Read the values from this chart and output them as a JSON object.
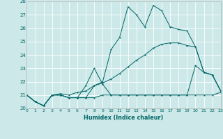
{
  "xlabel": "Humidex (Indice chaleur)",
  "bg_color": "#cce8e8",
  "grid_color": "#ffffff",
  "line_color": "#006666",
  "xlim": [
    0,
    23
  ],
  "ylim": [
    20,
    28
  ],
  "yticks": [
    20,
    21,
    22,
    23,
    24,
    25,
    26,
    27,
    28
  ],
  "xticks": [
    0,
    1,
    2,
    3,
    4,
    5,
    6,
    7,
    8,
    9,
    10,
    11,
    12,
    13,
    14,
    15,
    16,
    17,
    18,
    19,
    20,
    21,
    22,
    23
  ],
  "line1_x": [
    0,
    1,
    2,
    3,
    4,
    5,
    6,
    7,
    8,
    9,
    10,
    11,
    12,
    13,
    14,
    15,
    16,
    17,
    18,
    19,
    20,
    21,
    22,
    23
  ],
  "line1_y": [
    21.0,
    20.5,
    20.2,
    21.0,
    21.0,
    20.8,
    20.8,
    20.8,
    20.8,
    21.0,
    21.0,
    21.0,
    21.0,
    21.0,
    21.0,
    21.0,
    21.0,
    21.0,
    21.0,
    21.0,
    21.0,
    21.0,
    21.0,
    21.2
  ],
  "line2_x": [
    0,
    1,
    2,
    3,
    4,
    5,
    6,
    7,
    8,
    9,
    10,
    11,
    12,
    13,
    14,
    15,
    16,
    17,
    18,
    19,
    20,
    21,
    22,
    23
  ],
  "line2_y": [
    21.0,
    20.5,
    20.2,
    21.0,
    21.0,
    20.8,
    20.8,
    20.8,
    21.7,
    22.0,
    24.4,
    25.3,
    27.6,
    27.0,
    26.1,
    27.7,
    27.3,
    26.1,
    25.9,
    25.8,
    24.6,
    22.7,
    22.5,
    21.3
  ],
  "line3_x": [
    0,
    1,
    2,
    3,
    4,
    5,
    6,
    7,
    8,
    9,
    10,
    11,
    12,
    13,
    14,
    15,
    16,
    17,
    18,
    19,
    20,
    21,
    22,
    23
  ],
  "line3_y": [
    21.0,
    20.5,
    20.2,
    21.0,
    21.0,
    20.8,
    20.8,
    21.7,
    23.0,
    21.8,
    21.0,
    21.0,
    21.0,
    21.0,
    21.0,
    21.0,
    21.0,
    21.0,
    21.0,
    21.0,
    23.2,
    22.7,
    22.5,
    21.3
  ],
  "line4_x": [
    0,
    1,
    2,
    3,
    4,
    5,
    6,
    7,
    8,
    9,
    10,
    11,
    12,
    13,
    14,
    15,
    16,
    17,
    18,
    19,
    20,
    21,
    22,
    23
  ],
  "line4_y": [
    21.0,
    20.5,
    20.2,
    21.0,
    21.1,
    21.0,
    21.2,
    21.3,
    21.7,
    21.9,
    22.2,
    22.6,
    23.1,
    23.6,
    24.0,
    24.5,
    24.8,
    24.9,
    24.9,
    24.7,
    24.6,
    22.7,
    22.5,
    21.3
  ]
}
